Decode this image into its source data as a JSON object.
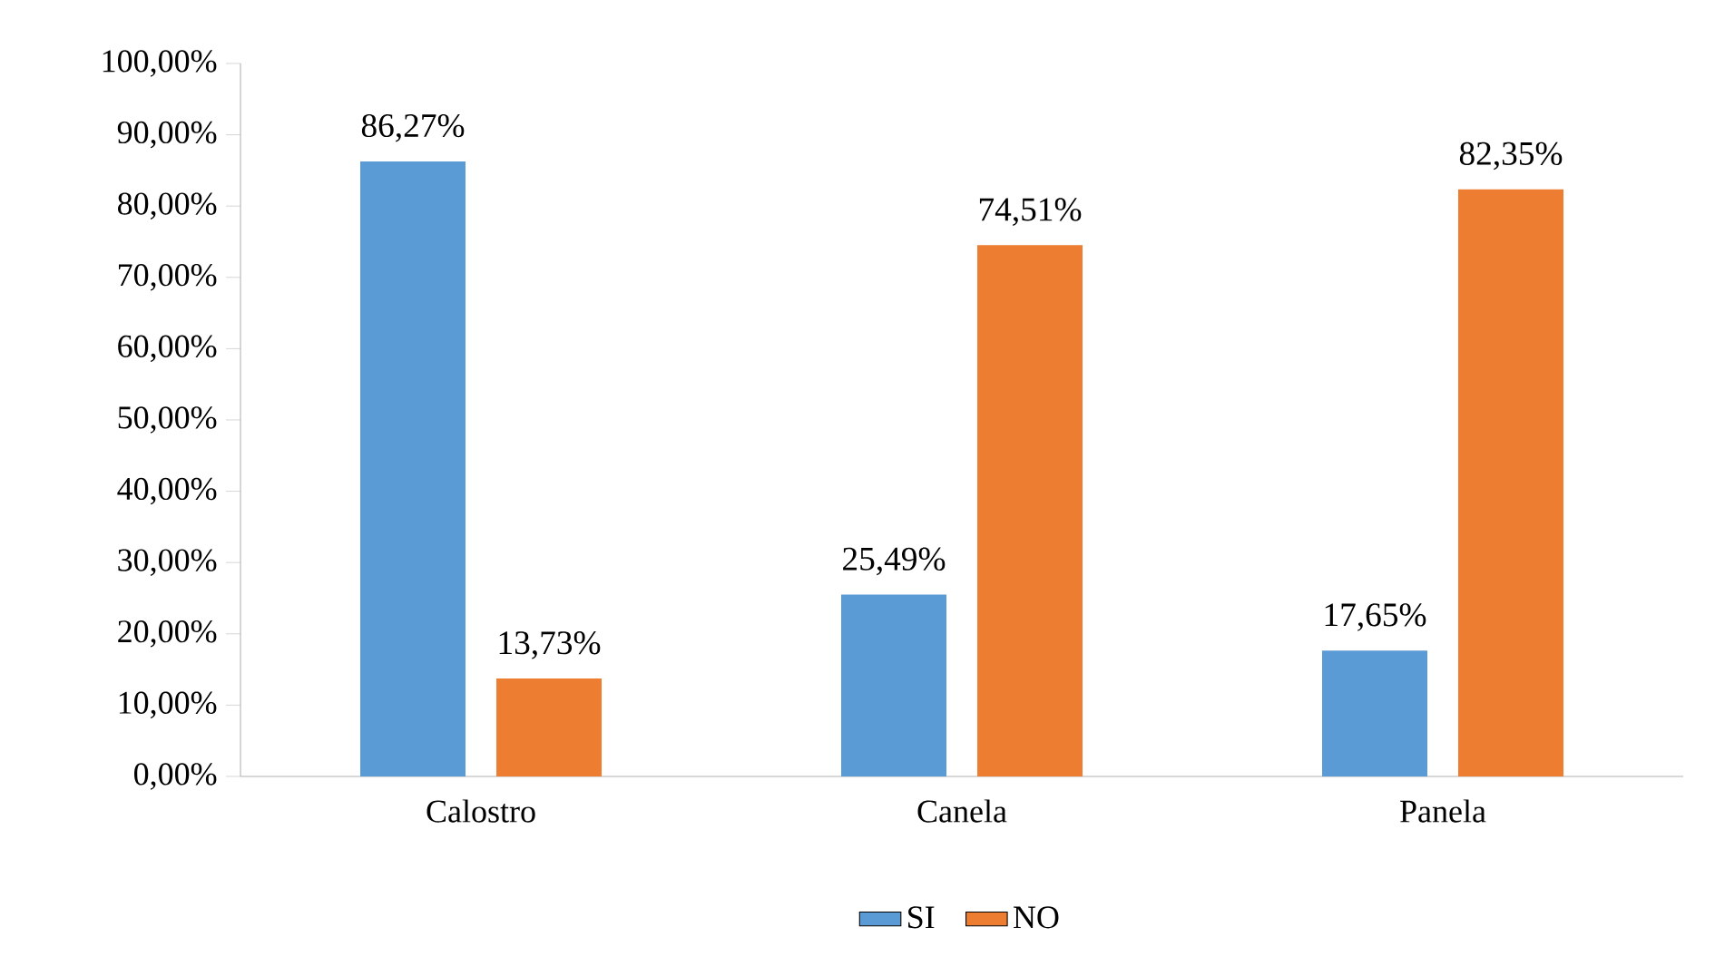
{
  "chart_data": {
    "type": "bar",
    "categories": [
      "Calostro",
      "Canela",
      "Panela"
    ],
    "series": [
      {
        "name": "SI",
        "color": "#5b9bd5",
        "values": [
          86.27,
          25.49,
          17.65
        ],
        "value_labels": [
          "86,27%",
          "25,49%",
          "17,65%"
        ]
      },
      {
        "name": "NO",
        "color": "#ed7d31",
        "values": [
          13.73,
          74.51,
          82.35
        ],
        "value_labels": [
          "13,73%",
          "74,51%",
          "82,35%"
        ]
      }
    ],
    "ylim": [
      0,
      100
    ],
    "yticks": [
      {
        "value": 0,
        "label": "0,00%"
      },
      {
        "value": 10,
        "label": "10,00%"
      },
      {
        "value": 20,
        "label": "20,00%"
      },
      {
        "value": 30,
        "label": "30,00%"
      },
      {
        "value": 40,
        "label": "40,00%"
      },
      {
        "value": 50,
        "label": "50,00%"
      },
      {
        "value": 60,
        "label": "60,00%"
      },
      {
        "value": 70,
        "label": "70,00%"
      },
      {
        "value": 80,
        "label": "80,00%"
      },
      {
        "value": 90,
        "label": "90,00%"
      },
      {
        "value": 100,
        "label": "100,00%"
      }
    ],
    "legend": "bottom"
  }
}
